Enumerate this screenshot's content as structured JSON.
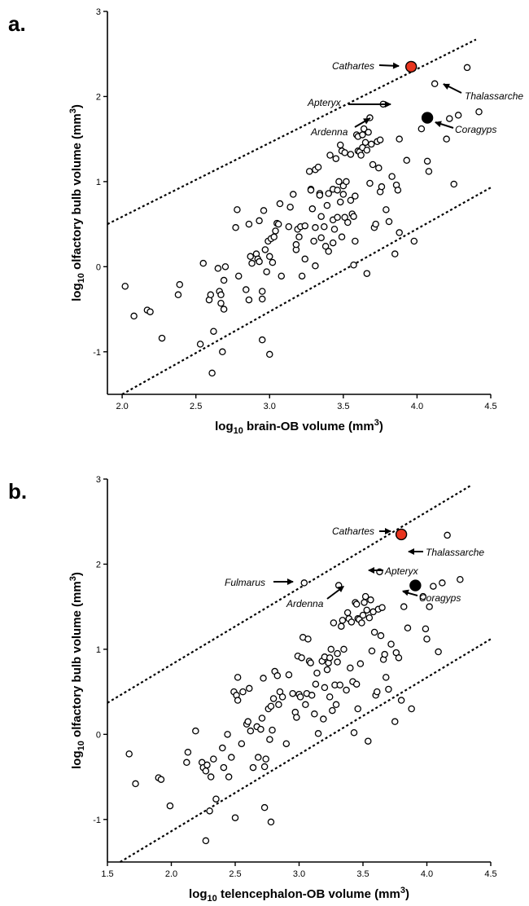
{
  "chart_data": [
    {
      "panel_label": "a.",
      "type": "scatter",
      "xlabel": {
        "pre": "log",
        "sub": "10",
        "post": " brain-OB volume (mm",
        "sup": "3",
        "end": ")"
      },
      "ylabel": {
        "pre": "log",
        "sub": "10",
        "post": " olfactory bulb volume (mm",
        "sup": "3",
        "end": ")"
      },
      "xlim": [
        1.9,
        4.5
      ],
      "ylim": [
        -1.5,
        3
      ],
      "xticks": [
        "2.0",
        "2.5",
        "3.0",
        "3.5",
        "4.0",
        "4.5"
      ],
      "yticks": [
        "-1",
        "0",
        "1",
        "2",
        "3"
      ],
      "prediction_lines": [
        {
          "x": [
            1.9,
            4.4
          ],
          "y": [
            0.5,
            2.67
          ]
        },
        {
          "x": [
            2.0,
            4.5
          ],
          "y": [
            -1.5,
            0.93
          ]
        }
      ],
      "highlighted_points": [
        {
          "label": "Cathartes",
          "x": 3.96,
          "y": 2.35,
          "color": "#e8351f"
        },
        {
          "label": "Coragyps",
          "x": 4.07,
          "y": 1.75,
          "color": "#000000"
        }
      ],
      "annotations": [
        {
          "text": "Cathartes",
          "x": 3.96,
          "y": 2.35
        },
        {
          "text": "Apteryx",
          "x": 3.77,
          "y": 1.91
        },
        {
          "text": "Ardenna",
          "x": 3.68,
          "y": 1.75
        },
        {
          "text": "Thalassarche",
          "x": 4.12,
          "y": 2.15
        },
        {
          "text": "Coragyps",
          "x": 4.07,
          "y": 1.75
        }
      ],
      "points": [
        [
          2.02,
          -0.23
        ],
        [
          2.08,
          -0.58
        ],
        [
          2.17,
          -0.51
        ],
        [
          2.19,
          -0.53
        ],
        [
          2.27,
          -0.84
        ],
        [
          2.38,
          -0.33
        ],
        [
          2.39,
          -0.21
        ],
        [
          2.53,
          -0.91
        ],
        [
          2.55,
          0.04
        ],
        [
          2.59,
          -0.39
        ],
        [
          2.6,
          -0.33
        ],
        [
          2.61,
          -1.25
        ],
        [
          2.62,
          -0.76
        ],
        [
          2.65,
          -0.02
        ],
        [
          2.66,
          -0.29
        ],
        [
          2.67,
          -0.33
        ],
        [
          2.67,
          -0.43
        ],
        [
          2.68,
          -1.0
        ],
        [
          2.69,
          -0.5
        ],
        [
          2.69,
          -0.16
        ],
        [
          2.7,
          0.0
        ],
        [
          2.77,
          0.46
        ],
        [
          2.78,
          0.67
        ],
        [
          2.79,
          -0.11
        ],
        [
          2.84,
          -0.27
        ],
        [
          2.86,
          0.5
        ],
        [
          2.86,
          -0.39
        ],
        [
          2.87,
          0.12
        ],
        [
          2.88,
          0.04
        ],
        [
          2.91,
          0.15
        ],
        [
          2.92,
          0.09
        ],
        [
          2.93,
          0.06
        ],
        [
          2.93,
          0.54
        ],
        [
          2.95,
          -0.86
        ],
        [
          2.95,
          -0.29
        ],
        [
          2.95,
          -0.38
        ],
        [
          2.96,
          0.66
        ],
        [
          2.97,
          0.2
        ],
        [
          2.98,
          -0.06
        ],
        [
          2.99,
          0.3
        ],
        [
          3.0,
          -1.03
        ],
        [
          3.0,
          0.12
        ],
        [
          3.01,
          0.33
        ],
        [
          3.02,
          0.05
        ],
        [
          3.03,
          0.35
        ],
        [
          3.04,
          0.42
        ],
        [
          3.05,
          0.51
        ],
        [
          3.06,
          0.5
        ],
        [
          3.07,
          0.74
        ],
        [
          3.08,
          -0.11
        ],
        [
          3.13,
          0.47
        ],
        [
          3.14,
          0.7
        ],
        [
          3.16,
          0.85
        ],
        [
          3.18,
          0.2
        ],
        [
          3.18,
          0.26
        ],
        [
          3.19,
          0.44
        ],
        [
          3.2,
          0.35
        ],
        [
          3.21,
          0.47
        ],
        [
          3.22,
          -0.11
        ],
        [
          3.24,
          0.48
        ],
        [
          3.24,
          0.09
        ],
        [
          3.27,
          1.12
        ],
        [
          3.28,
          0.91
        ],
        [
          3.28,
          0.9
        ],
        [
          3.29,
          0.68
        ],
        [
          3.3,
          0.3
        ],
        [
          3.31,
          1.14
        ],
        [
          3.31,
          0.46
        ],
        [
          3.31,
          0.01
        ],
        [
          3.33,
          1.17
        ],
        [
          3.34,
          0.86
        ],
        [
          3.34,
          0.84
        ],
        [
          3.35,
          0.59
        ],
        [
          3.35,
          0.34
        ],
        [
          3.37,
          0.47
        ],
        [
          3.38,
          0.24
        ],
        [
          3.39,
          0.72
        ],
        [
          3.4,
          0.86
        ],
        [
          3.4,
          0.18
        ],
        [
          3.41,
          1.31
        ],
        [
          3.43,
          0.55
        ],
        [
          3.43,
          0.91
        ],
        [
          3.43,
          0.28
        ],
        [
          3.44,
          0.44
        ],
        [
          3.45,
          1.27
        ],
        [
          3.46,
          0.58
        ],
        [
          3.46,
          0.9
        ],
        [
          3.47,
          1.0
        ],
        [
          3.48,
          1.43
        ],
        [
          3.48,
          0.76
        ],
        [
          3.49,
          1.36
        ],
        [
          3.49,
          0.35
        ],
        [
          3.5,
          0.85
        ],
        [
          3.5,
          0.95
        ],
        [
          3.51,
          0.58
        ],
        [
          3.51,
          1.34
        ],
        [
          3.52,
          1.0
        ],
        [
          3.53,
          0.52
        ],
        [
          3.55,
          1.32
        ],
        [
          3.55,
          0.78
        ],
        [
          3.56,
          0.62
        ],
        [
          3.57,
          0.59
        ],
        [
          3.57,
          0.02
        ],
        [
          3.58,
          0.3
        ],
        [
          3.58,
          0.83
        ],
        [
          3.59,
          1.55
        ],
        [
          3.6,
          1.53
        ],
        [
          3.6,
          1.36
        ],
        [
          3.61,
          1.35
        ],
        [
          3.62,
          1.31
        ],
        [
          3.63,
          1.4
        ],
        [
          3.63,
          1.55
        ],
        [
          3.64,
          1.62
        ],
        [
          3.65,
          1.46
        ],
        [
          3.66,
          -0.08
        ],
        [
          3.66,
          1.37
        ],
        [
          3.67,
          1.58
        ],
        [
          3.68,
          1.75
        ],
        [
          3.68,
          0.98
        ],
        [
          3.69,
          1.44
        ],
        [
          3.7,
          1.2
        ],
        [
          3.71,
          0.46
        ],
        [
          3.72,
          0.5
        ],
        [
          3.73,
          1.47
        ],
        [
          3.74,
          1.16
        ],
        [
          3.75,
          1.49
        ],
        [
          3.75,
          0.88
        ],
        [
          3.76,
          0.94
        ],
        [
          3.77,
          1.91
        ],
        [
          3.79,
          0.67
        ],
        [
          3.81,
          0.53
        ],
        [
          3.83,
          1.06
        ],
        [
          3.85,
          0.15
        ],
        [
          3.86,
          0.96
        ],
        [
          3.87,
          0.9
        ],
        [
          3.88,
          0.4
        ],
        [
          3.88,
          1.5
        ],
        [
          3.93,
          1.25
        ],
        [
          3.98,
          0.3
        ],
        [
          4.03,
          1.62
        ],
        [
          4.07,
          1.24
        ],
        [
          4.08,
          1.12
        ],
        [
          4.12,
          2.15
        ],
        [
          4.2,
          1.5
        ],
        [
          4.22,
          1.74
        ],
        [
          4.25,
          0.97
        ],
        [
          4.28,
          1.78
        ],
        [
          4.34,
          2.34
        ],
        [
          4.42,
          1.82
        ]
      ]
    },
    {
      "panel_label": "b.",
      "type": "scatter",
      "xlabel": {
        "pre": "log",
        "sub": "10",
        "post": " telencephalon-OB volume (mm",
        "sup": "3",
        "end": ")"
      },
      "ylabel": {
        "pre": "log",
        "sub": "10",
        "post": " olfactory bulb volume (mm",
        "sup": "3",
        "end": ")"
      },
      "xlim": [
        1.5,
        4.5
      ],
      "ylim": [
        -1.5,
        3
      ],
      "xticks": [
        "1.5",
        "2.0",
        "2.5",
        "3.0",
        "3.5",
        "4.0",
        "4.5"
      ],
      "yticks": [
        "-1",
        "0",
        "1",
        "2",
        "3"
      ],
      "prediction_lines": [
        {
          "x": [
            1.5,
            4.35
          ],
          "y": [
            0.37,
            2.93
          ]
        },
        {
          "x": [
            1.6,
            4.5
          ],
          "y": [
            -1.5,
            1.12
          ]
        }
      ],
      "highlighted_points": [
        {
          "label": "Cathartes",
          "x": 3.8,
          "y": 2.35,
          "color": "#e8351f"
        },
        {
          "label": "Coragyps",
          "x": 3.91,
          "y": 1.75,
          "color": "#000000"
        }
      ],
      "annotations": [
        {
          "text": "Cathartes",
          "x": 3.8,
          "y": 2.35
        },
        {
          "text": "Thalassarche",
          "x": 3.97,
          "y": 2.14
        },
        {
          "text": "Fulmarus",
          "x": 3.03,
          "y": 1.78
        },
        {
          "text": "Apteryx",
          "x": 3.63,
          "y": 1.91
        },
        {
          "text": "Ardenna",
          "x": 3.31,
          "y": 1.75
        },
        {
          "text": "Coragyps",
          "x": 3.91,
          "y": 1.75
        }
      ],
      "points": [
        [
          1.67,
          -0.23
        ],
        [
          1.72,
          -0.58
        ],
        [
          1.9,
          -0.51
        ],
        [
          1.92,
          -0.53
        ],
        [
          1.99,
          -0.84
        ],
        [
          2.12,
          -0.33
        ],
        [
          2.13,
          -0.21
        ],
        [
          2.19,
          0.04
        ],
        [
          2.24,
          -0.33
        ],
        [
          2.25,
          -0.39
        ],
        [
          2.27,
          -1.25
        ],
        [
          2.27,
          -0.43
        ],
        [
          2.28,
          -0.36
        ],
        [
          2.3,
          -0.9
        ],
        [
          2.31,
          -0.5
        ],
        [
          2.33,
          -0.29
        ],
        [
          2.35,
          -0.76
        ],
        [
          2.4,
          -0.16
        ],
        [
          2.41,
          -0.39
        ],
        [
          2.44,
          0.0
        ],
        [
          2.45,
          -0.5
        ],
        [
          2.47,
          -0.27
        ],
        [
          2.49,
          0.5
        ],
        [
          2.5,
          -0.98
        ],
        [
          2.51,
          0.46
        ],
        [
          2.52,
          0.67
        ],
        [
          2.52,
          0.4
        ],
        [
          2.55,
          -0.11
        ],
        [
          2.56,
          0.5
        ],
        [
          2.59,
          0.12
        ],
        [
          2.6,
          0.15
        ],
        [
          2.61,
          0.54
        ],
        [
          2.62,
          0.04
        ],
        [
          2.64,
          -0.39
        ],
        [
          2.67,
          0.09
        ],
        [
          2.68,
          -0.27
        ],
        [
          2.7,
          0.06
        ],
        [
          2.71,
          0.19
        ],
        [
          2.72,
          0.66
        ],
        [
          2.73,
          -0.38
        ],
        [
          2.73,
          -0.86
        ],
        [
          2.74,
          -0.29
        ],
        [
          2.76,
          0.3
        ],
        [
          2.77,
          -0.06
        ],
        [
          2.78,
          -1.03
        ],
        [
          2.78,
          0.33
        ],
        [
          2.79,
          0.05
        ],
        [
          2.8,
          0.42
        ],
        [
          2.81,
          0.74
        ],
        [
          2.83,
          0.69
        ],
        [
          2.84,
          0.35
        ],
        [
          2.85,
          0.5
        ],
        [
          2.87,
          0.44
        ],
        [
          2.9,
          -0.11
        ],
        [
          2.92,
          0.7
        ],
        [
          2.95,
          0.48
        ],
        [
          2.97,
          0.26
        ],
        [
          2.98,
          0.2
        ],
        [
          2.99,
          0.92
        ],
        [
          3.0,
          0.47
        ],
        [
          3.01,
          0.44
        ],
        [
          3.02,
          0.9
        ],
        [
          3.03,
          1.14
        ],
        [
          3.04,
          1.78
        ],
        [
          3.05,
          0.35
        ],
        [
          3.06,
          0.48
        ],
        [
          3.07,
          1.12
        ],
        [
          3.08,
          0.86
        ],
        [
          3.09,
          0.84
        ],
        [
          3.1,
          0.46
        ],
        [
          3.12,
          0.24
        ],
        [
          3.13,
          0.59
        ],
        [
          3.14,
          0.72
        ],
        [
          3.15,
          0.01
        ],
        [
          3.18,
          0.86
        ],
        [
          3.19,
          0.18
        ],
        [
          3.2,
          0.91
        ],
        [
          3.2,
          0.55
        ],
        [
          3.22,
          0.76
        ],
        [
          3.23,
          0.84
        ],
        [
          3.24,
          0.44
        ],
        [
          3.24,
          0.9
        ],
        [
          3.25,
          1.0
        ],
        [
          3.26,
          0.28
        ],
        [
          3.27,
          1.31
        ],
        [
          3.28,
          0.58
        ],
        [
          3.29,
          0.35
        ],
        [
          3.3,
          0.85
        ],
        [
          3.3,
          0.95
        ],
        [
          3.31,
          1.75
        ],
        [
          3.32,
          0.58
        ],
        [
          3.33,
          1.27
        ],
        [
          3.34,
          1.34
        ],
        [
          3.35,
          1.0
        ],
        [
          3.37,
          0.52
        ],
        [
          3.38,
          1.43
        ],
        [
          3.39,
          1.36
        ],
        [
          3.4,
          0.78
        ],
        [
          3.41,
          1.32
        ],
        [
          3.42,
          0.62
        ],
        [
          3.43,
          0.02
        ],
        [
          3.44,
          1.55
        ],
        [
          3.45,
          0.59
        ],
        [
          3.45,
          1.53
        ],
        [
          3.46,
          0.3
        ],
        [
          3.46,
          1.36
        ],
        [
          3.47,
          1.35
        ],
        [
          3.48,
          0.83
        ],
        [
          3.49,
          1.31
        ],
        [
          3.5,
          1.4
        ],
        [
          3.51,
          1.55
        ],
        [
          3.52,
          1.62
        ],
        [
          3.53,
          1.46
        ],
        [
          3.54,
          -0.08
        ],
        [
          3.55,
          1.37
        ],
        [
          3.56,
          1.58
        ],
        [
          3.57,
          0.98
        ],
        [
          3.58,
          1.44
        ],
        [
          3.59,
          1.2
        ],
        [
          3.6,
          0.46
        ],
        [
          3.61,
          0.5
        ],
        [
          3.62,
          1.47
        ],
        [
          3.63,
          1.91
        ],
        [
          3.64,
          1.16
        ],
        [
          3.65,
          1.49
        ],
        [
          3.66,
          0.88
        ],
        [
          3.67,
          0.94
        ],
        [
          3.68,
          0.67
        ],
        [
          3.7,
          0.53
        ],
        [
          3.72,
          1.06
        ],
        [
          3.75,
          0.15
        ],
        [
          3.76,
          0.96
        ],
        [
          3.78,
          0.9
        ],
        [
          3.8,
          0.4
        ],
        [
          3.82,
          1.5
        ],
        [
          3.85,
          1.25
        ],
        [
          3.88,
          0.3
        ],
        [
          3.97,
          1.62
        ],
        [
          3.99,
          1.24
        ],
        [
          4.0,
          1.12
        ],
        [
          4.02,
          1.5
        ],
        [
          4.05,
          1.74
        ],
        [
          4.09,
          0.97
        ],
        [
          4.12,
          1.78
        ],
        [
          4.16,
          2.34
        ],
        [
          4.26,
          1.82
        ]
      ]
    }
  ]
}
